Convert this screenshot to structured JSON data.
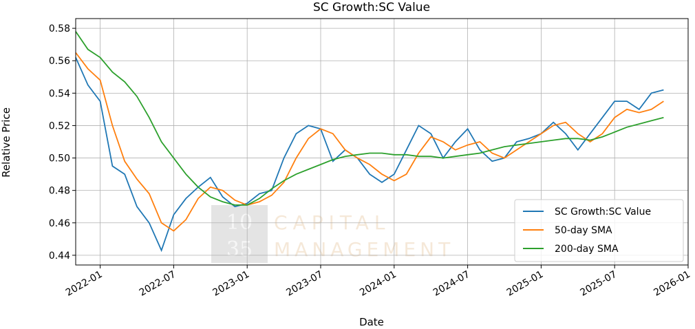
{
  "chart_data": {
    "type": "line",
    "title": "SC Growth:SC Value",
    "xlabel": "Date",
    "ylabel": "Relative Price",
    "watermark": [
      "10",
      "35",
      "CAPITAL",
      "MANAGEMENT"
    ],
    "x": [
      "2021-11",
      "2021-12",
      "2022-01",
      "2022-02",
      "2022-03",
      "2022-04",
      "2022-05",
      "2022-06",
      "2022-07",
      "2022-08",
      "2022-09",
      "2022-10",
      "2022-11",
      "2022-12",
      "2023-01",
      "2023-02",
      "2023-03",
      "2023-04",
      "2023-05",
      "2023-06",
      "2023-07",
      "2023-08",
      "2023-09",
      "2023-10",
      "2023-11",
      "2023-12",
      "2024-01",
      "2024-02",
      "2024-03",
      "2024-04",
      "2024-05",
      "2024-06",
      "2024-07",
      "2024-08",
      "2024-09",
      "2024-10",
      "2024-11",
      "2024-12",
      "2025-01",
      "2025-02",
      "2025-03",
      "2025-04",
      "2025-05",
      "2025-06",
      "2025-07",
      "2025-08",
      "2025-09",
      "2025-10",
      "2025-11"
    ],
    "series": [
      {
        "name": "SC Growth:SC Value",
        "color": "#1f77b4",
        "values": [
          0.562,
          0.545,
          0.535,
          0.495,
          0.49,
          0.47,
          0.46,
          0.443,
          0.465,
          0.475,
          0.482,
          0.488,
          0.476,
          0.47,
          0.472,
          0.478,
          0.48,
          0.5,
          0.515,
          0.52,
          0.518,
          0.498,
          0.505,
          0.5,
          0.49,
          0.485,
          0.49,
          0.505,
          0.52,
          0.515,
          0.5,
          0.51,
          0.518,
          0.505,
          0.498,
          0.5,
          0.51,
          0.512,
          0.515,
          0.522,
          0.515,
          0.505,
          0.515,
          0.525,
          0.535,
          0.535,
          0.53,
          0.54,
          0.542
        ]
      },
      {
        "name": "50-day SMA",
        "color": "#ff7f0e",
        "values": [
          0.565,
          0.555,
          0.548,
          0.52,
          0.498,
          0.487,
          0.478,
          0.46,
          0.455,
          0.462,
          0.475,
          0.482,
          0.48,
          0.474,
          0.471,
          0.473,
          0.477,
          0.485,
          0.5,
          0.512,
          0.518,
          0.515,
          0.505,
          0.5,
          0.496,
          0.49,
          0.486,
          0.49,
          0.503,
          0.513,
          0.51,
          0.505,
          0.508,
          0.51,
          0.503,
          0.5,
          0.505,
          0.51,
          0.515,
          0.52,
          0.522,
          0.515,
          0.51,
          0.515,
          0.525,
          0.53,
          0.528,
          0.53,
          0.535
        ]
      },
      {
        "name": "200-day SMA",
        "color": "#2ca02c",
        "values": [
          0.578,
          0.567,
          0.562,
          0.553,
          0.547,
          0.538,
          0.525,
          0.51,
          0.5,
          0.49,
          0.482,
          0.476,
          0.473,
          0.471,
          0.471,
          0.475,
          0.481,
          0.486,
          0.49,
          0.493,
          0.496,
          0.499,
          0.501,
          0.502,
          0.503,
          0.503,
          0.502,
          0.502,
          0.501,
          0.501,
          0.5,
          0.501,
          0.502,
          0.503,
          0.505,
          0.507,
          0.508,
          0.509,
          0.51,
          0.511,
          0.512,
          0.512,
          0.511,
          0.513,
          0.516,
          0.519,
          0.521,
          0.523,
          0.525
        ]
      }
    ],
    "xlim": [
      "2021-11",
      "2026-01"
    ],
    "xticks": [
      "2022-01",
      "2022-07",
      "2023-01",
      "2023-07",
      "2024-01",
      "2024-07",
      "2025-01",
      "2025-07",
      "2026-01"
    ],
    "ylim": [
      0.434,
      0.586
    ],
    "yticks": [
      0.44,
      0.46,
      0.48,
      0.5,
      0.52,
      0.54,
      0.56,
      0.58
    ],
    "ytick_labels": [
      "0.44",
      "0.46",
      "0.48",
      "0.50",
      "0.52",
      "0.54",
      "0.56",
      "0.58"
    ],
    "grid": true,
    "legend": "lower right"
  }
}
